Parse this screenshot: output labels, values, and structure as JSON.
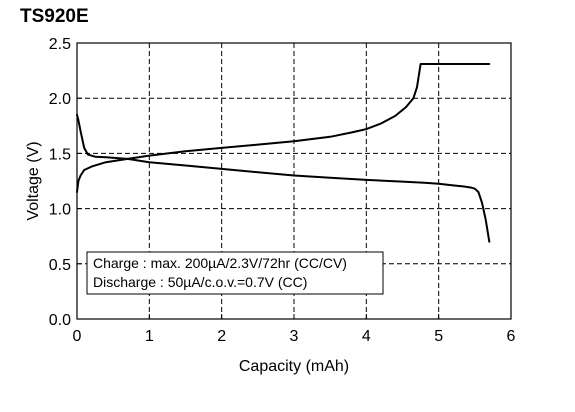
{
  "chart_data": {
    "type": "line",
    "title": "TS920E",
    "xlabel": "Capacity (mAh)",
    "ylabel": "Voltage (V)",
    "xlim": [
      0,
      6
    ],
    "ylim": [
      0,
      2.5
    ],
    "x_ticks": [
      "0",
      "1",
      "2",
      "3",
      "4",
      "5",
      "6"
    ],
    "y_ticks": [
      "0.0",
      "0.5",
      "1.0",
      "1.5",
      "2.0",
      "2.5"
    ],
    "grid": "dashed",
    "annotation": [
      "Charge : max. 200µA/2.3V/72hr (CC/CV)",
      "Discharge : 50µA/c.o.v.=0.7V (CC)"
    ],
    "series": [
      {
        "x": [
          0.0,
          0.02,
          0.05,
          0.1,
          0.2,
          0.4,
          0.7,
          1.0,
          1.5,
          2.0,
          2.5,
          3.0,
          3.5,
          3.8,
          4.0,
          4.2,
          4.4,
          4.55,
          4.65,
          4.7,
          4.75,
          5.0,
          5.4,
          5.7
        ],
        "y": [
          1.15,
          1.25,
          1.3,
          1.35,
          1.38,
          1.42,
          1.45,
          1.48,
          1.52,
          1.55,
          1.58,
          1.61,
          1.65,
          1.69,
          1.72,
          1.77,
          1.84,
          1.92,
          2.0,
          2.1,
          2.31,
          2.31,
          2.31,
          2.31
        ]
      },
      {
        "x": [
          0.0,
          0.02,
          0.05,
          0.1,
          0.15,
          0.25,
          0.4,
          0.7,
          1.0,
          1.5,
          2.0,
          2.5,
          3.0,
          3.5,
          4.0,
          4.5,
          4.8,
          5.0,
          5.2,
          5.35,
          5.45,
          5.5,
          5.55,
          5.6,
          5.65,
          5.7
        ],
        "y": [
          1.85,
          1.8,
          1.7,
          1.55,
          1.49,
          1.47,
          1.465,
          1.45,
          1.42,
          1.39,
          1.36,
          1.33,
          1.3,
          1.28,
          1.26,
          1.245,
          1.235,
          1.225,
          1.21,
          1.2,
          1.19,
          1.18,
          1.15,
          1.05,
          0.9,
          0.7
        ]
      }
    ]
  }
}
